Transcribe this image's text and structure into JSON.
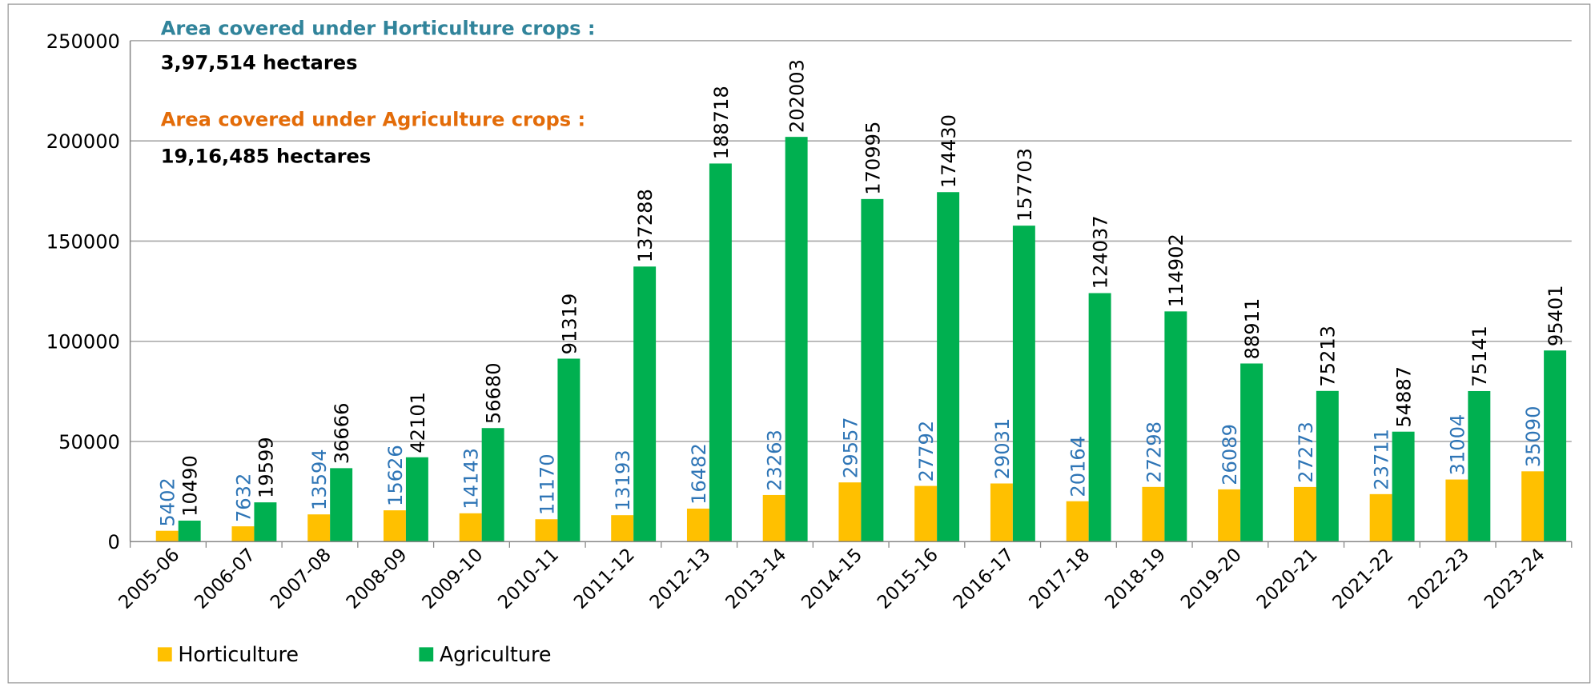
{
  "chart_data": {
    "type": "bar",
    "categories": [
      "2005-06",
      "2006-07",
      "2007-08",
      "2008-09",
      "2009-10",
      "2010-11",
      "2011-12",
      "2012-13",
      "2013-14",
      "2014-15",
      "2015-16",
      "2016-17",
      "2017-18",
      "2018-19",
      "2019-20",
      "2020-21",
      "2021-22",
      "2022-23",
      "2023-24"
    ],
    "series": [
      {
        "name": "Horticulture",
        "color": "#ffc000",
        "label_color": "#2e75b6",
        "values": [
          5402,
          7632,
          13594,
          15626,
          14143,
          11170,
          13193,
          16482,
          23263,
          29557,
          27792,
          29031,
          20164,
          27298,
          26089,
          27273,
          23711,
          31004,
          35090
        ]
      },
      {
        "name": "Agriculture",
        "color": "#00b050",
        "label_color": "#000000",
        "values": [
          10490,
          19599,
          36666,
          42101,
          56680,
          91319,
          137288,
          188718,
          202003,
          170995,
          174430,
          157703,
          124037,
          114902,
          88911,
          75213,
          54887,
          75141,
          95401
        ]
      }
    ],
    "ylim": [
      0,
      250000
    ],
    "yticks": [
      0,
      50000,
      100000,
      150000,
      200000,
      250000
    ],
    "grid": true,
    "annotations": [
      {
        "text": "Area covered under Horticulture crops :",
        "color": "#31849b"
      },
      {
        "text": "3,97,514 hectares",
        "color": "#000000"
      },
      {
        "text": "Area covered under Agriculture crops :",
        "color": "#e36c09"
      },
      {
        "text": "19,16,485 hectares",
        "color": "#000000"
      }
    ],
    "legend": "bottom-left"
  }
}
